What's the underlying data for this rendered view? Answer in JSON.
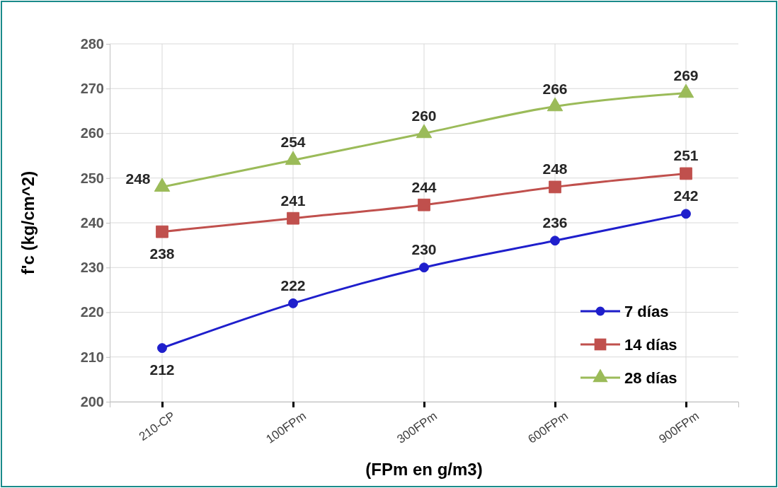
{
  "chart_data": {
    "type": "line",
    "xlabel": "(FPm en g/m3)",
    "ylabel": "f'c (kg/cm^2)",
    "categories": [
      "210-CP",
      "100FPm",
      "300FPm",
      "600FPm",
      "900FPm"
    ],
    "ylim": [
      200,
      280
    ],
    "yticks": [
      200,
      210,
      220,
      230,
      240,
      250,
      260,
      270,
      280
    ],
    "grid": true,
    "legend": "bottom right",
    "data_labels": true,
    "series": [
      {
        "name": "7 días",
        "color": "#1f1fcc",
        "marker": "circle",
        "values": [
          212,
          222,
          230,
          236,
          242
        ]
      },
      {
        "name": "14 días",
        "color": "#c0504d",
        "marker": "square",
        "values": [
          238,
          241,
          244,
          248,
          251
        ]
      },
      {
        "name": "28 días",
        "color": "#9bbb59",
        "marker": "triangle",
        "values": [
          248,
          254,
          260,
          266,
          269
        ]
      }
    ]
  }
}
